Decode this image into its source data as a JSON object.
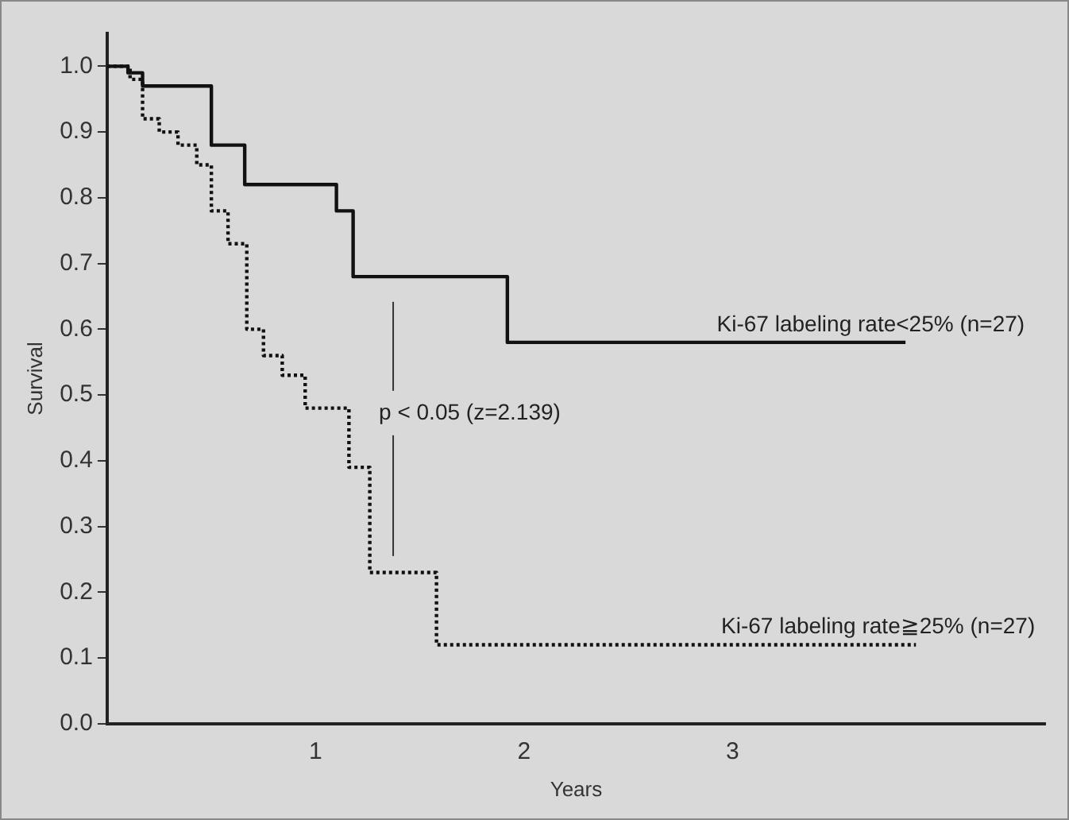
{
  "chart_data": {
    "type": "step",
    "xlabel": "Years",
    "ylabel": "Survival",
    "xlim": [
      0,
      4.5
    ],
    "xticks": [
      1,
      2,
      3
    ],
    "ylim": [
      0,
      1.05
    ],
    "yticks": [
      {
        "value": 0,
        "label": "0.0"
      },
      0.1,
      0.2,
      0.3,
      0.4,
      0.5,
      0.6,
      0.7,
      0.8,
      0.9,
      {
        "value": 1,
        "label": "1.0"
      }
    ],
    "grid": false,
    "legend": false,
    "marker": "none",
    "series": [
      {
        "name": "Ki-67 labeling rate<25% (n=27)",
        "color": "#111111",
        "line_style": "solid",
        "x": [
          0,
          0.1,
          0.17,
          0.5,
          0.66,
          1.1,
          1.18,
          1.92,
          3.83
        ],
        "values": [
          1.0,
          0.99,
          0.97,
          0.88,
          0.82,
          0.78,
          0.68,
          0.58,
          0.58
        ]
      },
      {
        "name": "Ki-67 labeling rate≧25% (n=27)",
        "color": "#111111",
        "line_style": "dotted",
        "x": [
          0,
          0.11,
          0.17,
          0.25,
          0.34,
          0.43,
          0.5,
          0.58,
          0.67,
          0.75,
          0.84,
          0.95,
          1.16,
          1.26,
          1.58,
          3.88
        ],
        "values": [
          1.0,
          0.98,
          0.92,
          0.9,
          0.88,
          0.85,
          0.78,
          0.73,
          0.6,
          0.56,
          0.53,
          0.48,
          0.39,
          0.23,
          0.12,
          0.12
        ]
      }
    ],
    "annotations": [
      "p < 0.05 (z=2.139)"
    ]
  }
}
